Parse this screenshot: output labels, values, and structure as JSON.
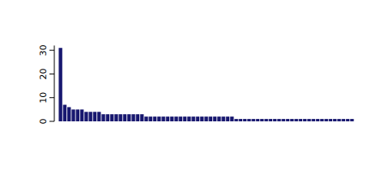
{
  "chart_data": {
    "type": "bar",
    "categories": [
      null,
      null,
      null,
      null,
      null,
      null,
      null,
      null,
      null,
      null,
      null,
      null,
      null,
      null,
      null,
      null,
      null,
      null,
      null,
      null,
      null,
      null,
      null,
      null,
      null,
      null,
      null,
      null,
      null,
      null,
      null,
      null,
      null,
      null,
      null,
      null,
      null,
      null,
      null,
      null,
      null,
      null,
      null,
      null,
      null,
      null,
      null,
      null,
      null,
      null,
      null,
      null,
      null,
      null,
      null,
      null,
      null,
      null,
      null,
      null,
      null,
      null,
      null,
      null,
      null,
      null,
      null,
      null,
      null
    ],
    "values": [
      31,
      7,
      6,
      5,
      5,
      5,
      4,
      4,
      4,
      4,
      3,
      3,
      3,
      3,
      3,
      3,
      3,
      3,
      3,
      3,
      2,
      2,
      2,
      2,
      2,
      2,
      2,
      2,
      2,
      2,
      2,
      2,
      2,
      2,
      2,
      2,
      2,
      2,
      2,
      2,
      2,
      1,
      1,
      1,
      1,
      1,
      1,
      1,
      1,
      1,
      1,
      1,
      1,
      1,
      1,
      1,
      1,
      1,
      1,
      1,
      1,
      1,
      1,
      1,
      1,
      1,
      1,
      1,
      1
    ],
    "color": "#191970",
    "ylim": [
      0,
      32
    ],
    "yticks": [
      0,
      10,
      20,
      30
    ],
    "tick_labels": "y",
    "grid": false
  }
}
